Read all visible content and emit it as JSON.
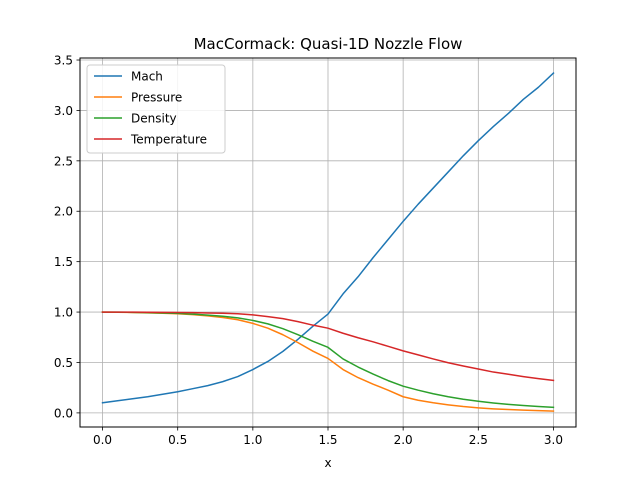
{
  "chart_data": {
    "type": "line",
    "title": "MacCormack: Quasi-1D Nozzle Flow",
    "xlabel": "x",
    "ylabel": "",
    "xlim": [
      -0.15,
      3.15
    ],
    "ylim": [
      -0.14,
      3.52
    ],
    "xticks": [
      0.0,
      0.5,
      1.0,
      1.5,
      2.0,
      2.5,
      3.0
    ],
    "yticks": [
      0.0,
      0.5,
      1.0,
      1.5,
      2.0,
      2.5,
      3.0,
      3.5
    ],
    "xtick_labels": [
      "0.0",
      "0.5",
      "1.0",
      "1.5",
      "2.0",
      "2.5",
      "3.0"
    ],
    "ytick_labels": [
      "0.0",
      "0.5",
      "1.0",
      "1.5",
      "2.0",
      "2.5",
      "3.0",
      "3.5"
    ],
    "grid": true,
    "legend_position": "top-left",
    "x": [
      0.0,
      0.1,
      0.2,
      0.3,
      0.4,
      0.5,
      0.6,
      0.7,
      0.8,
      0.9,
      1.0,
      1.1,
      1.2,
      1.3,
      1.4,
      1.5,
      1.6,
      1.7,
      1.8,
      1.9,
      2.0,
      2.1,
      2.2,
      2.3,
      2.4,
      2.5,
      2.6,
      2.7,
      2.8,
      2.9,
      3.0
    ],
    "series": [
      {
        "name": "Mach",
        "color": "#1f77b4",
        "values": [
          0.1,
          0.12,
          0.14,
          0.16,
          0.185,
          0.21,
          0.24,
          0.27,
          0.31,
          0.36,
          0.43,
          0.51,
          0.61,
          0.73,
          0.86,
          0.98,
          1.18,
          1.35,
          1.54,
          1.72,
          1.9,
          2.07,
          2.23,
          2.39,
          2.55,
          2.7,
          2.84,
          2.97,
          3.11,
          3.23,
          3.37
        ]
      },
      {
        "name": "Pressure",
        "color": "#ff7f0e",
        "values": [
          1.0,
          0.998,
          0.996,
          0.992,
          0.988,
          0.983,
          0.975,
          0.962,
          0.946,
          0.924,
          0.888,
          0.84,
          0.775,
          0.697,
          0.612,
          0.54,
          0.43,
          0.35,
          0.285,
          0.225,
          0.16,
          0.125,
          0.1,
          0.08,
          0.063,
          0.05,
          0.04,
          0.033,
          0.027,
          0.022,
          0.018
        ]
      },
      {
        "name": "Density",
        "color": "#2ca02c",
        "values": [
          1.0,
          0.999,
          0.997,
          0.994,
          0.991,
          0.987,
          0.98,
          0.97,
          0.958,
          0.942,
          0.917,
          0.883,
          0.835,
          0.776,
          0.71,
          0.65,
          0.535,
          0.455,
          0.385,
          0.32,
          0.265,
          0.225,
          0.19,
          0.16,
          0.135,
          0.115,
          0.098,
          0.084,
          0.073,
          0.063,
          0.055
        ]
      },
      {
        "name": "Temperature",
        "color": "#d62728",
        "values": [
          1.0,
          1.0,
          0.999,
          0.998,
          0.997,
          0.996,
          0.994,
          0.991,
          0.988,
          0.983,
          0.972,
          0.955,
          0.935,
          0.905,
          0.87,
          0.84,
          0.79,
          0.745,
          0.705,
          0.66,
          0.615,
          0.575,
          0.535,
          0.497,
          0.465,
          0.435,
          0.405,
          0.383,
          0.36,
          0.34,
          0.322
        ]
      }
    ]
  }
}
